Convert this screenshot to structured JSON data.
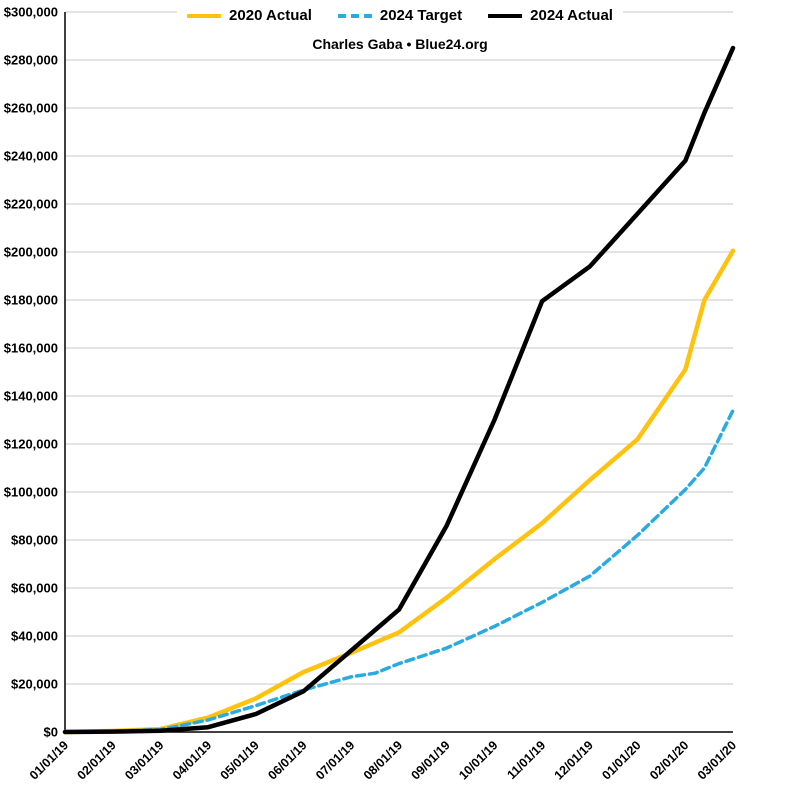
{
  "subtitle": "Charles Gaba • Blue24.org",
  "chart_data": {
    "type": "line",
    "title": "",
    "subtitle": "Charles Gaba • Blue24.org",
    "grid": "horizontal",
    "legend_position": "top-center",
    "ylim": [
      0,
      300000
    ],
    "y_tick_step": 20000,
    "y_tick_labels": [
      "$0",
      "$20,000",
      "$40,000",
      "$60,000",
      "$80,000",
      "$100,000",
      "$120,000",
      "$140,000",
      "$160,000",
      "$180,000",
      "$200,000",
      "$220,000",
      "$240,000",
      "$260,000",
      "$280,000",
      "$300,000"
    ],
    "x_tick_labels": [
      "01/01/19",
      "02/01/19",
      "03/01/19",
      "04/01/19",
      "05/01/19",
      "06/01/19",
      "07/01/19",
      "08/01/19",
      "09/01/19",
      "10/01/19",
      "11/01/19",
      "12/01/19",
      "01/01/20",
      "02/01/20",
      "03/01/20"
    ],
    "series": [
      {
        "name": "2020 Actual",
        "color": "#FFC20E",
        "style": "solid",
        "points": [
          [
            0,
            0
          ],
          [
            1,
            400
          ],
          [
            2,
            1200
          ],
          [
            3,
            6000
          ],
          [
            4,
            14000
          ],
          [
            5,
            25000
          ],
          [
            6,
            33000
          ],
          [
            7,
            41500
          ],
          [
            8,
            56000
          ],
          [
            9,
            72000
          ],
          [
            10,
            87000
          ],
          [
            11,
            105000
          ],
          [
            12,
            122000
          ],
          [
            13,
            151000
          ],
          [
            13.4,
            180000
          ],
          [
            14,
            200500
          ]
        ]
      },
      {
        "name": "2024 Target",
        "color": "#29ABE2",
        "style": "dashed",
        "points": [
          [
            0,
            0
          ],
          [
            1,
            300
          ],
          [
            2,
            1000
          ],
          [
            3,
            5000
          ],
          [
            4,
            11000
          ],
          [
            5,
            17500
          ],
          [
            6,
            23000
          ],
          [
            6.5,
            24500
          ],
          [
            7,
            28500
          ],
          [
            8,
            35000
          ],
          [
            9,
            44000
          ],
          [
            10,
            54000
          ],
          [
            11,
            65000
          ],
          [
            12,
            82000
          ],
          [
            13,
            101000
          ],
          [
            13.4,
            110000
          ],
          [
            14,
            134000
          ]
        ]
      },
      {
        "name": "2024 Actual",
        "color": "#000000",
        "style": "solid",
        "points": [
          [
            0,
            0
          ],
          [
            1,
            150
          ],
          [
            2,
            500
          ],
          [
            3,
            2000
          ],
          [
            4,
            7500
          ],
          [
            5,
            17000
          ],
          [
            6,
            34000
          ],
          [
            7,
            51000
          ],
          [
            8,
            86000
          ],
          [
            9,
            130000
          ],
          [
            10,
            179500
          ],
          [
            11,
            194000
          ],
          [
            12,
            216000
          ],
          [
            13,
            238000
          ],
          [
            13.4,
            258000
          ],
          [
            14,
            285000
          ]
        ]
      }
    ]
  }
}
